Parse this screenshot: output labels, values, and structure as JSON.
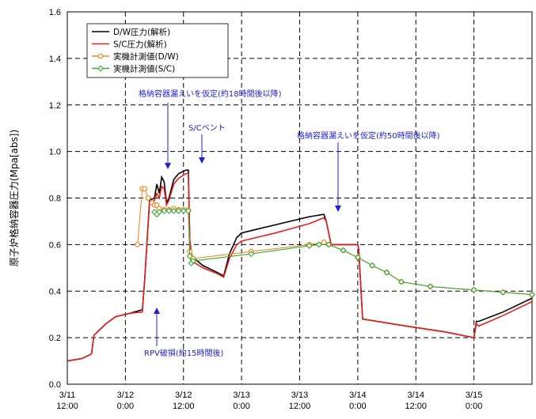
{
  "chart_data": {
    "type": "line",
    "title": "",
    "ylabel": "原子炉格納容器圧力(Mpa[abs])",
    "xlabel": "",
    "ylim": [
      0,
      1.6
    ],
    "xlim": [
      0,
      96
    ],
    "y_ticks": [
      0.0,
      0.2,
      0.4,
      0.6,
      0.8,
      1.0,
      1.2,
      1.4,
      1.6
    ],
    "x_ticks": [
      {
        "t": 0,
        "l1": "3/11",
        "l2": "12:00"
      },
      {
        "t": 12,
        "l1": "3/12",
        "l2": "0:00"
      },
      {
        "t": 24,
        "l1": "3/12",
        "l2": "12:00"
      },
      {
        "t": 36,
        "l1": "3/13",
        "l2": "0:00"
      },
      {
        "t": 48,
        "l1": "3/13",
        "l2": "12:00"
      },
      {
        "t": 60,
        "l1": "3/14",
        "l2": "0:00"
      },
      {
        "t": 72,
        "l1": "3/14",
        "l2": "12:00"
      },
      {
        "t": 84,
        "l1": "3/15",
        "l2": "0:00"
      },
      {
        "t": 96,
        "l1": "",
        "l2": ""
      }
    ],
    "grid": true,
    "legend_position": "top-left",
    "series": [
      {
        "name": "D/W圧力(解析)",
        "color": "#000000",
        "marker": "none",
        "points": [
          [
            0,
            0.1
          ],
          [
            3,
            0.11
          ],
          [
            5,
            0.13
          ],
          [
            5.5,
            0.21
          ],
          [
            8,
            0.26
          ],
          [
            10,
            0.29
          ],
          [
            13,
            0.305
          ],
          [
            15.5,
            0.32
          ],
          [
            16,
            0.45
          ],
          [
            17,
            0.79
          ],
          [
            18,
            0.8
          ],
          [
            18.5,
            0.86
          ],
          [
            19,
            0.82
          ],
          [
            19.5,
            0.89
          ],
          [
            20,
            0.87
          ],
          [
            20.5,
            0.78
          ],
          [
            21,
            0.8
          ],
          [
            22,
            0.88
          ],
          [
            23,
            0.905
          ],
          [
            24.5,
            0.92
          ],
          [
            25,
            0.92
          ],
          [
            25.3,
            0.62
          ],
          [
            25.7,
            0.55
          ],
          [
            28,
            0.51
          ],
          [
            31,
            0.48
          ],
          [
            32.3,
            0.465
          ],
          [
            33.5,
            0.56
          ],
          [
            35,
            0.63
          ],
          [
            36,
            0.65
          ],
          [
            39,
            0.665
          ],
          [
            43,
            0.685
          ],
          [
            50,
            0.72
          ],
          [
            53,
            0.73
          ],
          [
            53.5,
            0.7
          ],
          [
            54.5,
            0.6
          ],
          [
            60,
            0.6
          ],
          [
            60.2,
            0.58
          ],
          [
            61,
            0.28
          ],
          [
            70,
            0.25
          ],
          [
            78,
            0.225
          ],
          [
            84,
            0.2
          ],
          [
            84.5,
            0.27
          ],
          [
            85,
            0.27
          ],
          [
            90,
            0.31
          ],
          [
            96,
            0.37
          ]
        ]
      },
      {
        "name": "S/C圧力(解析)",
        "color": "#e8201c",
        "marker": "none",
        "points": [
          [
            0,
            0.1
          ],
          [
            3,
            0.11
          ],
          [
            5,
            0.13
          ],
          [
            5.5,
            0.21
          ],
          [
            8,
            0.26
          ],
          [
            10,
            0.29
          ],
          [
            13,
            0.305
          ],
          [
            15.5,
            0.31
          ],
          [
            16,
            0.45
          ],
          [
            17,
            0.78
          ],
          [
            18,
            0.79
          ],
          [
            18.5,
            0.82
          ],
          [
            19,
            0.8
          ],
          [
            19.5,
            0.85
          ],
          [
            20,
            0.84
          ],
          [
            20.5,
            0.77
          ],
          [
            21,
            0.79
          ],
          [
            22,
            0.86
          ],
          [
            23,
            0.885
          ],
          [
            24.5,
            0.905
          ],
          [
            25,
            0.905
          ],
          [
            25.3,
            0.62
          ],
          [
            25.7,
            0.53
          ],
          [
            28,
            0.5
          ],
          [
            31,
            0.475
          ],
          [
            32.3,
            0.46
          ],
          [
            33.5,
            0.54
          ],
          [
            35,
            0.6
          ],
          [
            36,
            0.615
          ],
          [
            39,
            0.63
          ],
          [
            43,
            0.65
          ],
          [
            50,
            0.69
          ],
          [
            53,
            0.715
          ],
          [
            53.5,
            0.7
          ],
          [
            54.5,
            0.6
          ],
          [
            60,
            0.6
          ],
          [
            60.2,
            0.58
          ],
          [
            61,
            0.28
          ],
          [
            70,
            0.25
          ],
          [
            78,
            0.225
          ],
          [
            84,
            0.2
          ],
          [
            84.5,
            0.26
          ],
          [
            85,
            0.25
          ],
          [
            90,
            0.295
          ],
          [
            96,
            0.355
          ]
        ]
      },
      {
        "name": "実機計測値(D/W)",
        "color": "#f08a2c",
        "marker": "circle",
        "points": [
          [
            14.5,
            0.6
          ],
          [
            15.5,
            0.84
          ],
          [
            16,
            0.84
          ],
          [
            16.7,
            0.8
          ],
          [
            17.5,
            0.78
          ],
          [
            18,
            0.77
          ],
          [
            18.5,
            0.77
          ],
          [
            19,
            0.755
          ],
          [
            20,
            0.75
          ],
          [
            21,
            0.75
          ],
          [
            22,
            0.755
          ],
          [
            23,
            0.75
          ],
          [
            24,
            0.75
          ],
          [
            25,
            0.75
          ],
          [
            25.3,
            0.57
          ],
          [
            25.5,
            0.55
          ],
          [
            26,
            0.54
          ],
          [
            38,
            0.57
          ],
          [
            50,
            0.6
          ],
          [
            53,
            0.61
          ],
          [
            54,
            0.6
          ],
          [
            57,
            0.575
          ],
          [
            60,
            0.545
          ],
          [
            63,
            0.51
          ],
          [
            66,
            0.48
          ],
          [
            69,
            0.44
          ],
          [
            75,
            0.42
          ],
          [
            84,
            0.405
          ],
          [
            90,
            0.395
          ],
          [
            96,
            0.385
          ]
        ]
      },
      {
        "name": "実機計測値(S/C)",
        "color": "#3aa83a",
        "marker": "diamond",
        "points": [
          [
            18,
            0.74
          ],
          [
            18.5,
            0.73
          ],
          [
            19,
            0.74
          ],
          [
            20,
            0.745
          ],
          [
            21,
            0.745
          ],
          [
            22,
            0.745
          ],
          [
            23,
            0.745
          ],
          [
            24,
            0.745
          ],
          [
            25,
            0.745
          ],
          [
            25.3,
            0.55
          ],
          [
            25.6,
            0.52
          ],
          [
            26,
            0.53
          ],
          [
            38,
            0.56
          ],
          [
            50,
            0.595
          ],
          [
            52,
            0.6
          ],
          [
            54,
            0.6
          ],
          [
            57,
            0.575
          ],
          [
            60,
            0.545
          ],
          [
            63,
            0.51
          ],
          [
            66,
            0.48
          ],
          [
            69,
            0.44
          ],
          [
            75,
            0.42
          ],
          [
            84,
            0.405
          ],
          [
            90,
            0.395
          ],
          [
            96,
            0.385
          ]
        ]
      }
    ],
    "annotations": [
      {
        "text": "格納容器漏えいを仮定(約18時間後以降)",
        "target": [
          19.2,
          0.88
        ]
      },
      {
        "text": "S/Cベント",
        "target": [
          25,
          0.92
        ]
      },
      {
        "text": "格納容器漏えいを仮定(約50時間後以降)",
        "target": [
          53,
          0.73
        ]
      },
      {
        "text": "RPV破損(約15時間後)",
        "target": [
          15.7,
          0.32
        ]
      }
    ]
  }
}
